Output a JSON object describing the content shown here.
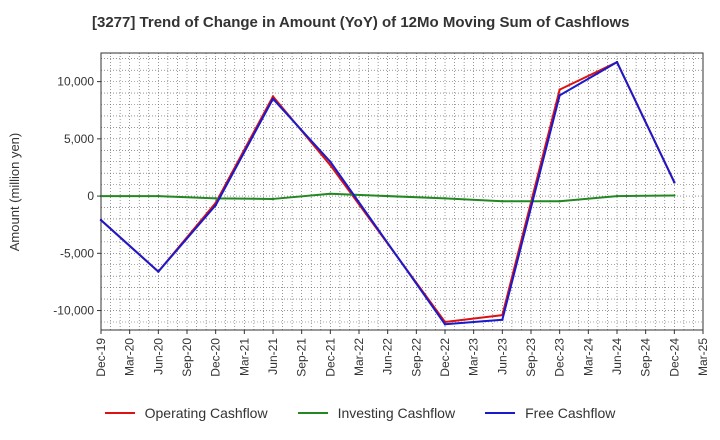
{
  "chart_data": {
    "type": "line",
    "title": "[3277]  Trend of Change in Amount (YoY) of 12Mo Moving Sum of Cashflows",
    "xlabel": "",
    "ylabel": "Amount (million yen)",
    "ylim": [
      -11700,
      12500
    ],
    "yticks": [
      -10000,
      -5000,
      0,
      5000,
      10000
    ],
    "ytick_labels": [
      "-10,000",
      "-5,000",
      "0",
      "5,000",
      "10,000"
    ],
    "categories": [
      "Dec-19",
      "Mar-20",
      "Jun-20",
      "Sep-20",
      "Dec-20",
      "Mar-21",
      "Jun-21",
      "Sep-21",
      "Dec-21",
      "Mar-22",
      "Jun-22",
      "Sep-22",
      "Dec-22",
      "Mar-23",
      "Jun-23",
      "Sep-23",
      "Dec-23",
      "Mar-24",
      "Jun-24",
      "Sep-24",
      "Dec-24",
      "Mar-25"
    ],
    "grid": true,
    "series": [
      {
        "name": "Operating Cashflow",
        "color": "#dd1111",
        "values": [
          -2100,
          null,
          -6600,
          null,
          -600,
          null,
          8700,
          null,
          2700,
          null,
          null,
          null,
          -11000,
          null,
          -10400,
          null,
          9300,
          null,
          11700,
          null,
          1200,
          null
        ]
      },
      {
        "name": "Investing Cashflow",
        "color": "#228822",
        "values": [
          0,
          null,
          0,
          null,
          -200,
          null,
          -250,
          null,
          200,
          null,
          null,
          null,
          -200,
          null,
          -450,
          null,
          -450,
          null,
          0,
          null,
          50,
          null
        ]
      },
      {
        "name": "Free Cashflow",
        "color": "#1a1acc",
        "values": [
          -2100,
          null,
          -6600,
          null,
          -800,
          null,
          8500,
          null,
          3000,
          null,
          null,
          null,
          -11200,
          null,
          -10800,
          null,
          8800,
          null,
          11700,
          null,
          1200,
          null
        ]
      }
    ]
  }
}
